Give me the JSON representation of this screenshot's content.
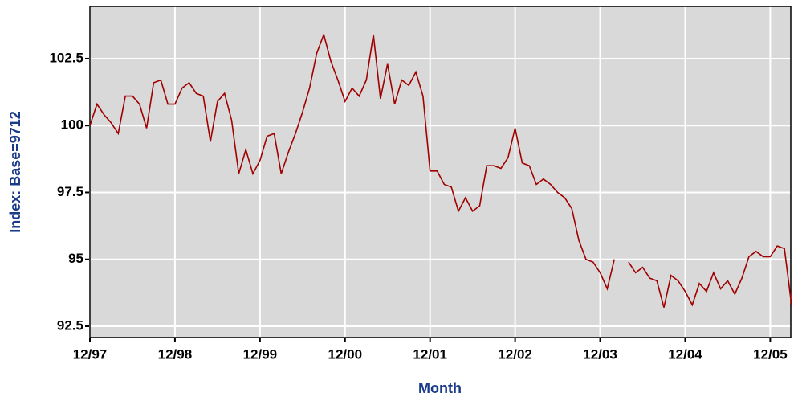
{
  "chart_data": {
    "type": "line",
    "xlabel": "Month",
    "ylabel": "Index: Base=9712",
    "x": [
      0,
      1,
      2,
      3,
      4,
      5,
      6,
      7,
      8,
      9,
      10,
      11,
      12,
      13,
      14,
      15,
      16,
      17,
      18,
      19,
      20,
      21,
      22,
      23,
      24,
      25,
      26,
      27,
      28,
      29,
      30,
      31,
      32,
      33,
      34,
      35,
      36,
      37,
      38,
      39,
      40,
      41,
      42,
      43,
      44,
      45,
      46,
      47,
      48,
      49,
      50,
      51,
      52,
      53,
      54,
      55,
      56,
      57,
      58,
      59,
      60,
      61,
      62,
      63,
      64,
      65,
      66,
      67,
      68,
      69,
      70,
      71,
      72,
      73,
      74,
      75,
      76,
      77,
      78,
      79,
      80,
      81,
      82,
      83,
      84,
      85,
      86,
      87,
      88,
      89,
      90,
      91,
      92,
      93,
      94,
      95,
      96,
      97,
      98,
      99
    ],
    "series": [
      {
        "name": "Index",
        "color": "#a00000",
        "values": [
          100.0,
          100.8,
          100.4,
          100.1,
          99.7,
          101.1,
          101.1,
          100.8,
          99.9,
          101.6,
          101.7,
          100.8,
          100.8,
          101.4,
          101.6,
          101.2,
          101.1,
          99.4,
          100.9,
          101.2,
          100.2,
          98.2,
          99.1,
          98.2,
          98.7,
          99.6,
          99.7,
          98.2,
          99.0,
          99.7,
          100.5,
          101.4,
          102.7,
          103.4,
          102.4,
          101.7,
          100.9,
          101.4,
          101.1,
          101.7,
          103.4,
          101.0,
          102.3,
          100.8,
          101.7,
          101.5,
          102.0,
          101.1,
          98.3,
          98.3,
          97.8,
          97.7,
          96.8,
          97.3,
          96.8,
          97.0,
          98.5,
          98.5,
          98.4,
          98.8,
          99.9,
          98.6,
          98.5,
          97.8,
          98.0,
          97.8,
          97.5,
          97.3,
          96.9,
          95.7,
          95.0,
          94.9,
          94.5,
          93.9,
          95.0,
          null,
          94.9,
          94.5,
          94.7,
          94.3,
          94.2,
          93.2,
          94.4,
          94.2,
          93.8,
          93.3,
          94.1,
          93.8,
          94.5,
          93.9,
          94.2,
          93.7,
          94.3,
          95.1,
          95.3,
          95.1,
          95.1,
          95.5,
          95.4,
          93.3
        ]
      }
    ],
    "xlim": [
      0,
      98.9
    ],
    "xticks": [
      {
        "value": 0,
        "label": "12/97"
      },
      {
        "value": 12,
        "label": "12/98"
      },
      {
        "value": 24,
        "label": "12/99"
      },
      {
        "value": 36,
        "label": "12/00"
      },
      {
        "value": 48,
        "label": "12/01"
      },
      {
        "value": 60,
        "label": "12/02"
      },
      {
        "value": 72,
        "label": "12/03"
      },
      {
        "value": 84,
        "label": "12/04"
      },
      {
        "value": 96,
        "label": "12/05"
      }
    ],
    "ylim": [
      92.08,
      104.45
    ],
    "yticks": [
      92.5,
      95,
      97.5,
      100,
      102.5
    ],
    "grid": true
  }
}
